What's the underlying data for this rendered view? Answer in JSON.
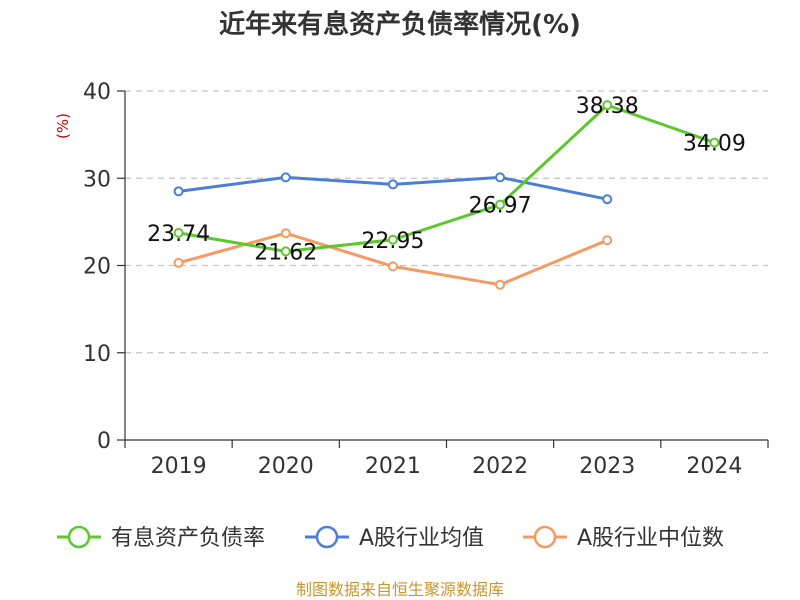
{
  "chart_data": {
    "type": "line",
    "title": "近年来有息资产负债率情况(%)",
    "ylabel": "(%)",
    "xlabel": "",
    "categories": [
      "2019",
      "2020",
      "2021",
      "2022",
      "2023",
      "2024"
    ],
    "ylim": [
      0,
      40
    ],
    "yticks": [
      0,
      10,
      20,
      30,
      40
    ],
    "grid": true,
    "legend_position": "bottom",
    "series": [
      {
        "name": "有息资产负债率",
        "color": "#5ec72e",
        "labels": true,
        "values": [
          23.74,
          21.62,
          22.95,
          26.97,
          38.38,
          34.09
        ],
        "value_labels": [
          "23.74",
          "21.62",
          "22.95",
          "26.97",
          "38.38",
          "34.09"
        ]
      },
      {
        "name": "A股行业均值",
        "color": "#4a7fd9",
        "labels": false,
        "values": [
          28.5,
          30.1,
          29.3,
          30.1,
          27.6,
          null
        ]
      },
      {
        "name": "A股行业中位数",
        "color": "#f59a63",
        "labels": false,
        "values": [
          20.3,
          23.7,
          19.9,
          17.8,
          22.9,
          null
        ]
      }
    ],
    "source": "制图数据来自恒生聚源数据库"
  }
}
